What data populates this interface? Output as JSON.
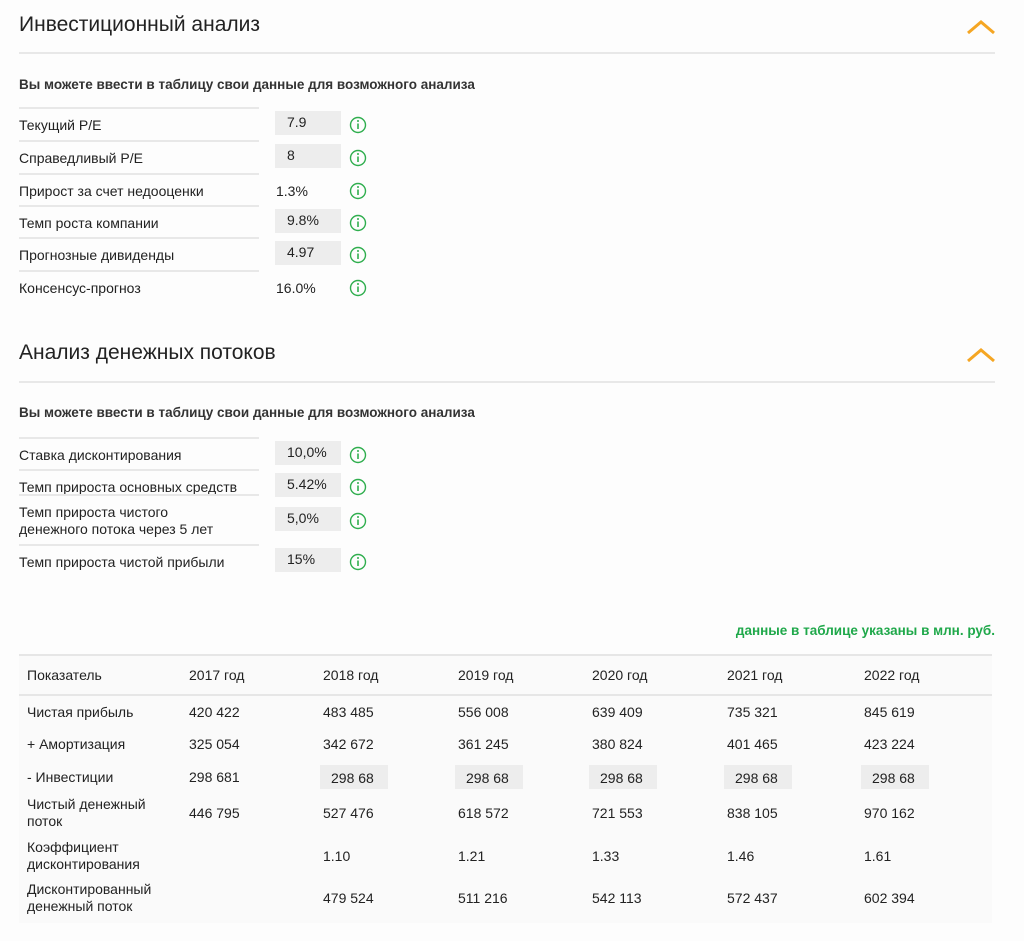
{
  "sections": [
    {
      "title": "Инвестиционный анализ",
      "subtitle": "Вы можете ввести в таблицу свои данные для возможного анализа",
      "fields": [
        {
          "label": "Текущий P/E",
          "value": "7.9"
        },
        {
          "label": "Справедливый P/E",
          "value": "8"
        },
        {
          "label": "Прирост за счет недооценки",
          "value": "1.3%"
        },
        {
          "label": "Темп роста компании",
          "value": "9.8%"
        },
        {
          "label": "Прогнозные дивиденды",
          "value": "4.97"
        },
        {
          "label": "Консенсус-прогноз",
          "value": "16.0%"
        }
      ]
    },
    {
      "title": "Анализ денежных потоков",
      "subtitle": "Вы можете ввести в таблицу свои данные для возможного анализа",
      "fields": [
        {
          "label": "Ставка дисконтирования",
          "value": "10,0%"
        },
        {
          "label": "Темп прироста основных средств",
          "value": "5.42%"
        },
        {
          "label": "Темп прироста чистого денежного потока через 5 лет",
          "value": "5,0%"
        },
        {
          "label": "Темп прироста чистой прибыли",
          "value": "15%"
        }
      ]
    }
  ],
  "note": "данные в таблице указаны в млн. руб.",
  "table": {
    "header": [
      "Показатель",
      "2017 год",
      "2018 год",
      "2019 год",
      "2020 год",
      "2021 год",
      "2022 год"
    ],
    "rows": [
      {
        "label": "Чистая прибыль",
        "values": [
          "420 422",
          "483 485",
          "556 008",
          "639 409",
          "735 321",
          "845 619"
        ]
      },
      {
        "label": "+ Амортизация",
        "values": [
          "325 054",
          "342 672",
          "361 245",
          "380 824",
          "401 465",
          "423 224"
        ]
      },
      {
        "label": "- Инвестиции",
        "values": [
          "298 681",
          "298 68",
          "298 68",
          "298 68",
          "298 68",
          "298 68"
        ]
      },
      {
        "label": "Чистый денежный поток",
        "values": [
          "446 795",
          "527 476",
          "618 572",
          "721 553",
          "838 105",
          "970 162"
        ]
      },
      {
        "label": "Коэффициент дисконтирования",
        "values": [
          null,
          "1.10",
          "1.21",
          "1.33",
          "1.46",
          "1.61"
        ]
      },
      {
        "label": "Дисконтированный денежный поток",
        "values": [
          null,
          "479 524",
          "511 216",
          "542 113",
          "572 437",
          "602 394"
        ]
      }
    ]
  }
}
